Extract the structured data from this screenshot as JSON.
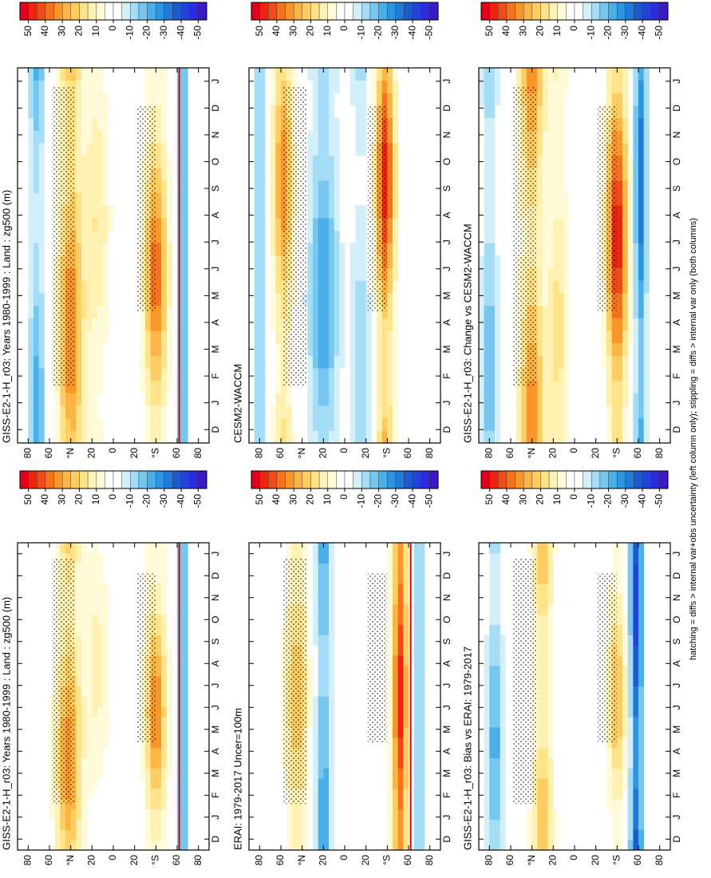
{
  "chart_data": [
    {
      "type": "contour",
      "title": "GISS-E2-1-H_r03: Years 1980-1999 : Land : zg500 (m)"
    },
    {
      "type": "contour",
      "title": "CESM2-WACCM"
    },
    {
      "type": "contour",
      "title": "GISS-E2-1-H_r03: Change vs CESM2-WACCM"
    },
    {
      "type": "contour",
      "title": "GISS-E2-1-H_r03: Years 1980-1999 : Land : zg500 (m)"
    },
    {
      "type": "contour",
      "title": "ERAI: 1979-2017 Uncer=100m"
    },
    {
      "type": "contour",
      "title": "GISS-E2-1-H_r03: Bias vs ERAI: 1979-2017"
    }
  ],
  "axes": {
    "months": [
      "D",
      "J",
      "F",
      "M",
      "A",
      "M",
      "J",
      "J",
      "A",
      "S",
      "O",
      "N",
      "D",
      "J"
    ],
    "lat_lim": [
      90,
      -90
    ],
    "lat_ticks": [
      80,
      60,
      {
        "value": 40,
        "label": "°N"
      },
      20,
      0,
      {
        "value": -20,
        "label": "20"
      },
      {
        "value": -40,
        "label": "°S"
      },
      {
        "value": -60,
        "label": "60"
      },
      {
        "value": -80,
        "label": "80"
      }
    ]
  },
  "colorbar": {
    "colors": [
      "#e0001c",
      "#ec2410",
      "#f24a16",
      "#f7721c",
      "#fa952a",
      "#fcb445",
      "#fdcd62",
      "#fee389",
      "#fff1b1",
      "#fffad8",
      "#ffffff",
      "#ffffff",
      "#d2effa",
      "#a4ddf5",
      "#75c7ef",
      "#4aafe8",
      "#2d95e0",
      "#2078d8",
      "#1c5ad2",
      "#2242da",
      "#2e2ce0",
      "#3c18cc"
    ],
    "ticks": [
      50,
      40,
      30,
      20,
      10,
      0,
      -10,
      -20,
      -30,
      -40,
      -50
    ]
  },
  "footnote": "hatching = diffs > internal var+obs uncertainty (left column only); stippling = diffs > internal var only (both columns)"
}
